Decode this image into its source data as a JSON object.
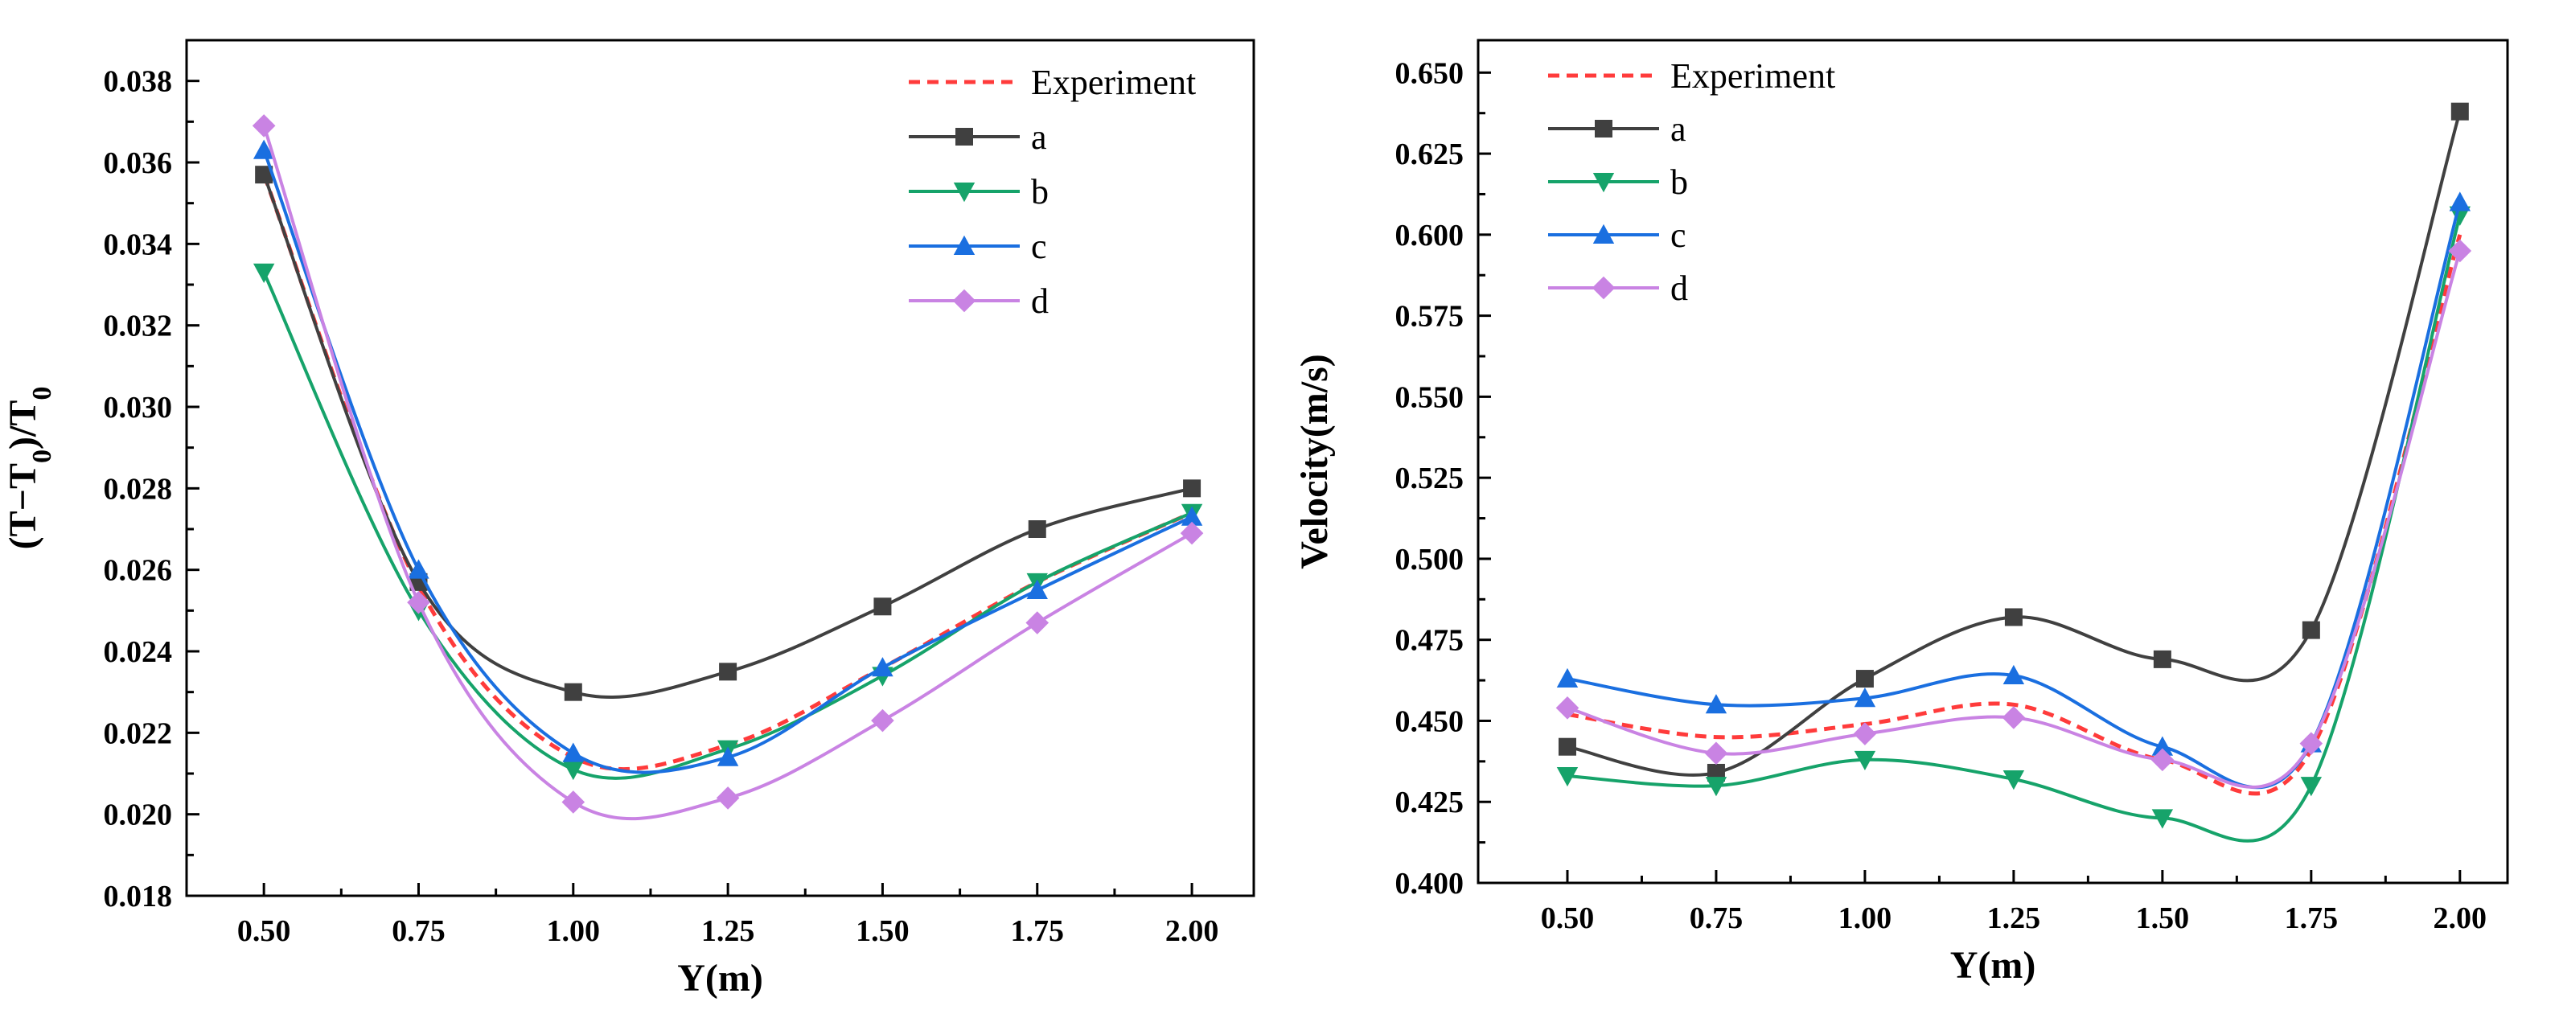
{
  "colors": {
    "experiment": "#ff3b3b",
    "a": "#404040",
    "b": "#16a36a",
    "c": "#1a6fe0",
    "d": "#c983e3"
  },
  "chart_data": [
    {
      "type": "line",
      "xlabel": "Y(m)",
      "ylabel": "(T−T0)/T0",
      "ylabel_parts": {
        "pre": "(T−T",
        "sub1": "0",
        "mid": ")/T",
        "sub2": "0"
      },
      "xlim": [
        0.375,
        2.1
      ],
      "ylim": [
        0.018,
        0.039
      ],
      "xticks": [
        0.5,
        0.75,
        1.0,
        1.25,
        1.5,
        1.75,
        2.0
      ],
      "xtick_labels": [
        "0.50",
        "0.75",
        "1.00",
        "1.25",
        "1.50",
        "1.75",
        "2.00"
      ],
      "yticks": [
        0.018,
        0.02,
        0.022,
        0.024,
        0.026,
        0.028,
        0.03,
        0.032,
        0.034,
        0.036,
        0.038
      ],
      "ytick_labels": [
        "0.018",
        "0.020",
        "0.022",
        "0.024",
        "0.026",
        "0.028",
        "0.030",
        "0.032",
        "0.034",
        "0.036",
        "0.038"
      ],
      "legend_position": "top-right",
      "x": [
        0.5,
        0.75,
        1.0,
        1.25,
        1.5,
        1.75,
        2.0
      ],
      "series": [
        {
          "name": "Experiment",
          "key": "experiment",
          "marker": "none",
          "dashed": true,
          "values": [
            0.0357,
            0.0256,
            0.0214,
            0.0217,
            0.0236,
            0.0257,
            0.0274
          ]
        },
        {
          "name": "a",
          "key": "a",
          "marker": "square",
          "values": [
            0.0357,
            0.0257,
            0.023,
            0.0235,
            0.0251,
            0.027,
            0.028
          ]
        },
        {
          "name": "b",
          "key": "b",
          "marker": "triangle-down",
          "values": [
            0.0333,
            0.025,
            0.0211,
            0.0216,
            0.0234,
            0.0257,
            0.0274
          ]
        },
        {
          "name": "c",
          "key": "c",
          "marker": "triangle-up",
          "values": [
            0.0363,
            0.026,
            0.0215,
            0.0214,
            0.0236,
            0.0255,
            0.0273
          ]
        },
        {
          "name": "d",
          "key": "d",
          "marker": "diamond",
          "values": [
            0.0369,
            0.0252,
            0.0203,
            0.0204,
            0.0223,
            0.0247,
            0.0269
          ]
        }
      ]
    },
    {
      "type": "line",
      "xlabel": "Y(m)",
      "ylabel": "Velocity(m/s)",
      "xlim": [
        0.35,
        2.08
      ],
      "ylim": [
        0.4,
        0.66
      ],
      "xticks": [
        0.5,
        0.75,
        1.0,
        1.25,
        1.5,
        1.75,
        2.0
      ],
      "xtick_labels": [
        "0.50",
        "0.75",
        "1.00",
        "1.25",
        "1.50",
        "1.75",
        "2.00"
      ],
      "yticks": [
        0.4,
        0.425,
        0.45,
        0.475,
        0.5,
        0.525,
        0.55,
        0.575,
        0.6,
        0.625,
        0.65
      ],
      "ytick_labels": [
        "0.400",
        "0.425",
        "0.450",
        "0.475",
        "0.500",
        "0.525",
        "0.550",
        "0.575",
        "0.600",
        "0.625",
        "0.650"
      ],
      "legend_position": "top-left",
      "x": [
        0.5,
        0.75,
        1.0,
        1.25,
        1.5,
        1.75,
        2.0
      ],
      "series": [
        {
          "name": "Experiment",
          "key": "experiment",
          "marker": "none",
          "dashed": true,
          "values": [
            0.452,
            0.445,
            0.449,
            0.455,
            0.438,
            0.441,
            0.6
          ]
        },
        {
          "name": "a",
          "key": "a",
          "marker": "square",
          "values": [
            0.442,
            0.434,
            0.463,
            0.482,
            0.469,
            0.478,
            0.638
          ]
        },
        {
          "name": "b",
          "key": "b",
          "marker": "triangle-down",
          "values": [
            0.433,
            0.43,
            0.438,
            0.432,
            0.42,
            0.43,
            0.606
          ]
        },
        {
          "name": "c",
          "key": "c",
          "marker": "triangle-up",
          "values": [
            0.463,
            0.455,
            0.457,
            0.464,
            0.442,
            0.443,
            0.61
          ]
        },
        {
          "name": "d",
          "key": "d",
          "marker": "diamond",
          "values": [
            0.454,
            0.44,
            0.446,
            0.451,
            0.438,
            0.443,
            0.595
          ]
        }
      ]
    }
  ]
}
